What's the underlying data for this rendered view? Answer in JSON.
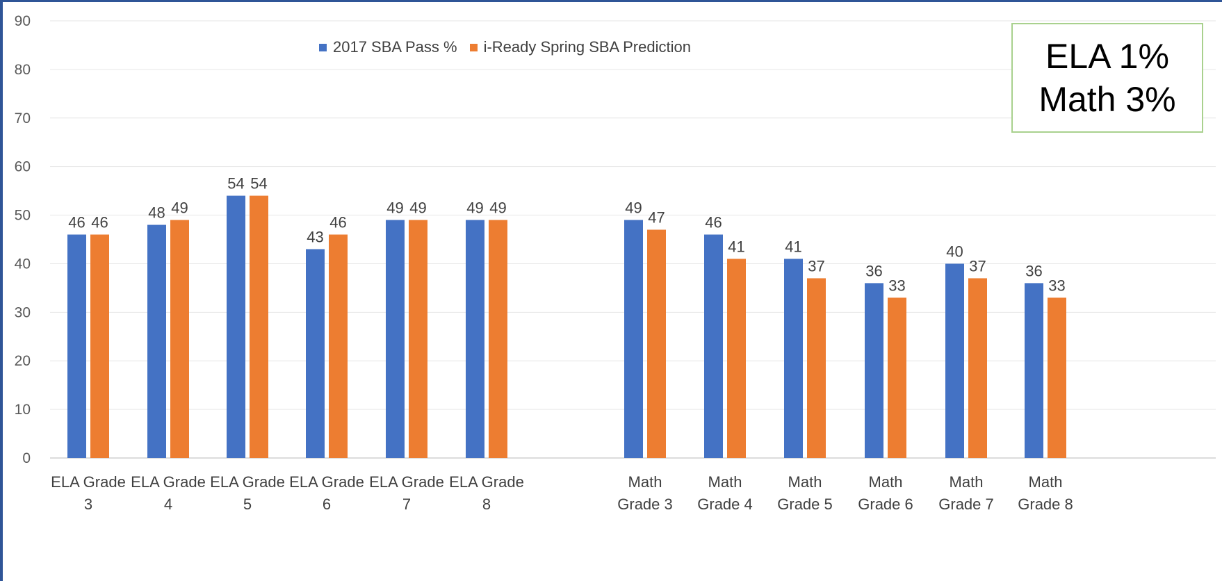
{
  "chart_data": {
    "type": "bar",
    "title": "",
    "xlabel": "",
    "ylabel": "",
    "ylim": [
      0,
      90
    ],
    "yticks": [
      0,
      10,
      20,
      30,
      40,
      50,
      60,
      70,
      80,
      90
    ],
    "grid": true,
    "legend_position": "top-center",
    "categories": [
      [
        "ELA Grade",
        "3"
      ],
      [
        "ELA Grade",
        "4"
      ],
      [
        "ELA Grade",
        "5"
      ],
      [
        "ELA Grade",
        "6"
      ],
      [
        "ELA Grade",
        "7"
      ],
      [
        "ELA Grade",
        "8"
      ],
      [
        "Math",
        "Grade 3"
      ],
      [
        "Math",
        "Grade 4"
      ],
      [
        "Math",
        "Grade 5"
      ],
      [
        "Math",
        "Grade 6"
      ],
      [
        "Math",
        "Grade 7"
      ],
      [
        "Math",
        "Grade 8"
      ]
    ],
    "series": [
      {
        "name": "2017 SBA Pass %",
        "color": "#4472c4",
        "values": [
          46,
          48,
          54,
          43,
          49,
          49,
          49,
          46,
          41,
          36,
          40,
          36
        ]
      },
      {
        "name": "i-Ready Spring SBA Prediction",
        "color": "#ed7d31",
        "values": [
          46,
          49,
          54,
          46,
          49,
          49,
          47,
          41,
          37,
          33,
          37,
          33
        ]
      }
    ]
  },
  "note": {
    "line1": "ELA 1%",
    "line2": "Math 3%"
  }
}
